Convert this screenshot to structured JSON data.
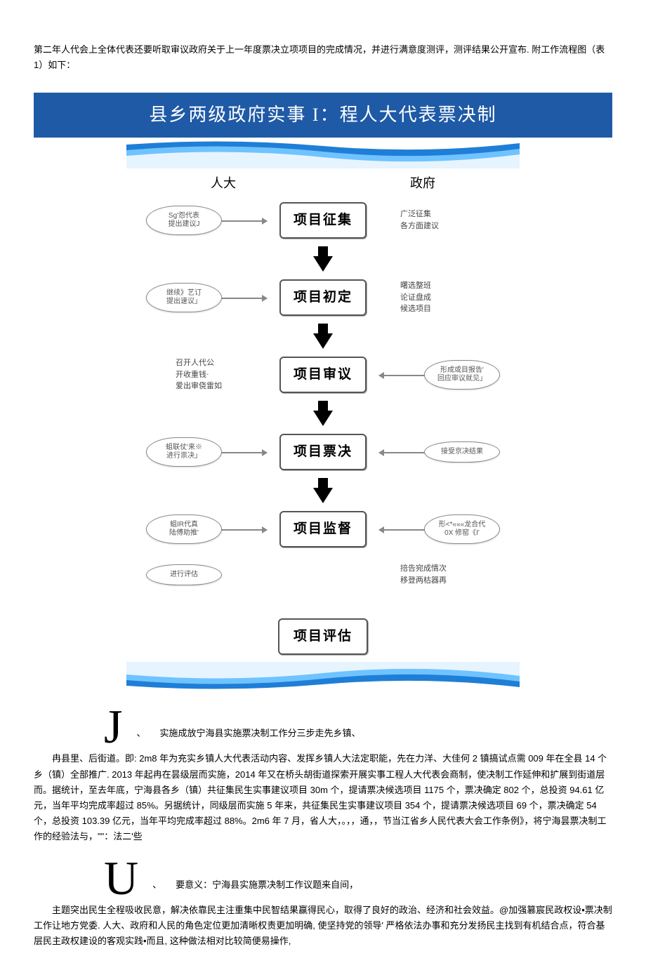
{
  "colors": {
    "title_bg": "#1f5aa6",
    "wave1": "#1f7ed6",
    "wave2": "#6fc3ff",
    "wave3": "#e6f4ff",
    "text": "#000000"
  },
  "intro": "第二年人代会上全体代表还要听取审议政府关于上一年度票决立项项目的完成情况，并进行满意度测评，测评结果公开宣布. 附工作流程图（表 1）如下：",
  "title_bar": "县乡两级政府实事 I：程人大代表票决制",
  "columns": {
    "left": "人大",
    "right": "政府"
  },
  "stages": [
    {
      "name": "项目征集",
      "left_bubble": "Sg'怨代表\n提出建议J",
      "right_text": "广泛征集\n各方面建议"
    },
    {
      "name": "项目初定",
      "left_bubble": "继续》艺订\n提出速议」",
      "right_text": "曙选整班\n论证盘成\n候选项目"
    },
    {
      "name": "项目审议",
      "left_text": "召开人代公\n开收重钱·\n爱出审侥雷如",
      "right_bubble": "形成或目报告'\n回应审议就见」"
    },
    {
      "name": "项目票决",
      "left_bubble": "蛆联仗'来※\n进行祟决」",
      "right_bubble": "接受京决结果"
    },
    {
      "name": "项目监督",
      "left_bubble": "蛆IR代真\n陆傅助推'",
      "right_bubble": "形<*«««龙合代\n0X 修窑《I'"
    }
  ],
  "bottom_row": {
    "left_bubble": "进行评估",
    "right_text": "掊告宛成情次\n移登两枯器再"
  },
  "eval_box": "项目评估",
  "section_j": {
    "dropcap": "J",
    "suffix": "、",
    "lead": "实施成放宁海县实施票决制工作分三步走先乡镇、",
    "body": "冉县里、后街道。即: 2m8 年为充实乡镇人大代表活动内容、发挥乡镇人大法定职能，先在力洋、大佳何 2 镇搞试点需 009 年在全县 14 个乡（镇）全部推广. 2013 年起冉在昙级层而实施，2014 年又在桥头胡街道探索开展实事工程人大代表会商制，使决制工作延伸和扩展到街道层而。据统计，至去年底，宁海县各乡（镇）共征集民生实事建议项目 30m 个，提请票决候选项目 1175 个，票决确定 802 个，总投资 94.61 亿元，当年平均完成率超过 85%。另据统计，同级层而实施 5 年来，共征集民生实事建议项目 354 个，提请票决候选项目 69 个，票决确定 54 个，总投资 103.39 亿元，当年平均完成率超过 88%。2m6 年 7 月，省人大，。，，通，，节当江省乡人民代表大会工作条例》，将宁海昙票决制工作的经验法与，\"\"：法二'些"
  },
  "section_u": {
    "dropcap": "U",
    "suffix": "、",
    "lead": "要意义：宁海县实施票决制工作议题来自间，",
    "body": "主题突出民生全程吸收民意，解决依靠民主注重集中民智结果赢得民心，取得了良好的政治、经济和社会效益。@加强篡宸民政权设•票决制工作让地方党委. 人大、政府和人民的角色定位更加清晰权责更加明确, 使坚持党的领导' 严格依法办事和充分发扬民主找到有机结合点，符合基层民主政权建设的客观实践•而且, 这种做法相对比较简便易操作,"
  }
}
